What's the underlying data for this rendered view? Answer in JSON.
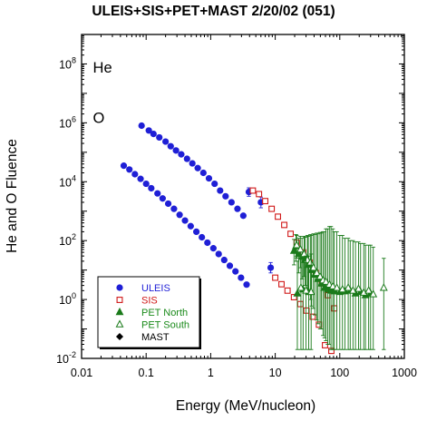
{
  "chart_data": {
    "type": "scatter",
    "title": "ULEIS+SIS+PET+MAST 2/20/02 (051)",
    "xlabel": "Energy (MeV/nucleon)",
    "ylabel": "He and O Fluence",
    "xscale": "log",
    "yscale": "log",
    "xlim": [
      0.01,
      1000
    ],
    "ylim": [
      0.01,
      1000000000
    ],
    "x_ticks": [
      {
        "value": 0.01,
        "label": "0.01"
      },
      {
        "value": 0.1,
        "label": "0.1"
      },
      {
        "value": 1,
        "label": "1"
      },
      {
        "value": 10,
        "label": "10"
      },
      {
        "value": 100,
        "label": "100"
      },
      {
        "value": 1000,
        "label": "1000"
      }
    ],
    "y_ticks": [
      {
        "value": 0.01,
        "base": "10",
        "exp": "-2"
      },
      {
        "value": 1,
        "base": "10",
        "exp": "0"
      },
      {
        "value": 100,
        "base": "10",
        "exp": "2"
      },
      {
        "value": 10000,
        "base": "10",
        "exp": "4"
      },
      {
        "value": 1000000,
        "base": "10",
        "exp": "6"
      },
      {
        "value": 100000000,
        "base": "10",
        "exp": "8"
      }
    ],
    "panel_labels": [
      {
        "text": "He",
        "x": 0.015,
        "y": 50000000
      },
      {
        "text": "O",
        "x": 0.015,
        "y": 1000000
      }
    ],
    "legend_position": "bottom-left",
    "series": [
      {
        "name": "ULEIS",
        "color": "#1f1fd6",
        "text_color": "#1f1fd6",
        "marker": "circle-filled",
        "points": [
          {
            "x": 0.085,
            "y": 800000
          },
          {
            "x": 0.11,
            "y": 550000
          },
          {
            "x": 0.13,
            "y": 420000
          },
          {
            "x": 0.16,
            "y": 320000
          },
          {
            "x": 0.2,
            "y": 230000
          },
          {
            "x": 0.24,
            "y": 160000
          },
          {
            "x": 0.29,
            "y": 115000
          },
          {
            "x": 0.35,
            "y": 85000
          },
          {
            "x": 0.43,
            "y": 60000
          },
          {
            "x": 0.52,
            "y": 42000
          },
          {
            "x": 0.63,
            "y": 29000
          },
          {
            "x": 0.77,
            "y": 20000
          },
          {
            "x": 0.94,
            "y": 13000
          },
          {
            "x": 1.15,
            "y": 8500
          },
          {
            "x": 1.4,
            "y": 5000
          },
          {
            "x": 1.7,
            "y": 3200
          },
          {
            "x": 2.1,
            "y": 2000
          },
          {
            "x": 2.6,
            "y": 1200
          },
          {
            "x": 3.2,
            "y": 700
          },
          {
            "x": 3.9,
            "y": 4500,
            "err": [
              3200,
              6200
            ]
          },
          {
            "x": 6.0,
            "y": 2000,
            "err": [
              1300,
              3000
            ]
          },
          {
            "x": 0.045,
            "y": 35000
          },
          {
            "x": 0.055,
            "y": 26000
          },
          {
            "x": 0.067,
            "y": 18000
          },
          {
            "x": 0.082,
            "y": 12500
          },
          {
            "x": 0.1,
            "y": 8500
          },
          {
            "x": 0.12,
            "y": 6000
          },
          {
            "x": 0.15,
            "y": 4000
          },
          {
            "x": 0.18,
            "y": 2700
          },
          {
            "x": 0.22,
            "y": 1800
          },
          {
            "x": 0.27,
            "y": 1200
          },
          {
            "x": 0.33,
            "y": 750
          },
          {
            "x": 0.4,
            "y": 480
          },
          {
            "x": 0.49,
            "y": 310
          },
          {
            "x": 0.6,
            "y": 200
          },
          {
            "x": 0.73,
            "y": 130
          },
          {
            "x": 0.89,
            "y": 85
          },
          {
            "x": 1.1,
            "y": 55
          },
          {
            "x": 1.33,
            "y": 35
          },
          {
            "x": 1.62,
            "y": 22
          },
          {
            "x": 1.98,
            "y": 14
          },
          {
            "x": 2.42,
            "y": 9
          },
          {
            "x": 2.95,
            "y": 5.5
          },
          {
            "x": 3.6,
            "y": 3.2
          },
          {
            "x": 8.5,
            "y": 12,
            "err": [
              8,
              18
            ]
          }
        ]
      },
      {
        "name": "SIS",
        "color": "#d01818",
        "text_color": "#d01818",
        "marker": "square-open",
        "points": [
          {
            "x": 4.5,
            "y": 5000
          },
          {
            "x": 5.6,
            "y": 3800
          },
          {
            "x": 7.0,
            "y": 2200
          },
          {
            "x": 8.8,
            "y": 1200
          },
          {
            "x": 11.0,
            "y": 650
          },
          {
            "x": 13.8,
            "y": 340
          },
          {
            "x": 17.3,
            "y": 170
          },
          {
            "x": 21.5,
            "y": 85
          },
          {
            "x": 27.0,
            "y": 40
          },
          {
            "x": 34.0,
            "y": 18
          },
          {
            "x": 42.5,
            "y": 8
          },
          {
            "x": 53.0,
            "y": 3.5
          },
          {
            "x": 66.0,
            "y": 1.4
          },
          {
            "x": 82.0,
            "y": 0.5
          },
          {
            "x": 10.0,
            "y": 5.5
          },
          {
            "x": 12.5,
            "y": 3.3
          },
          {
            "x": 15.5,
            "y": 2.0
          },
          {
            "x": 19.5,
            "y": 1.2
          },
          {
            "x": 24.5,
            "y": 0.7
          },
          {
            "x": 30.5,
            "y": 0.42
          },
          {
            "x": 38.0,
            "y": 0.26
          },
          {
            "x": 47.5,
            "y": 0.14
          },
          {
            "x": 59.0,
            "y": 0.028
          },
          {
            "x": 74.0,
            "y": 0.018
          }
        ]
      },
      {
        "name": "PET North",
        "color": "#1a7a1a",
        "text_color": "#1a8a1a",
        "marker": "triangle-filled",
        "points": [
          {
            "x": 19.5,
            "y": 45,
            "err": [
              15,
              110
            ]
          },
          {
            "x": 21.0,
            "y": 65,
            "err": [
              20,
              160
            ]
          },
          {
            "x": 23.0,
            "y": 35,
            "err": [
              8,
              120
            ]
          },
          {
            "x": 26.0,
            "y": 28,
            "err": [
              5,
              120
            ]
          },
          {
            "x": 29.0,
            "y": 22,
            "err": [
              3,
              130
            ]
          },
          {
            "x": 32.5,
            "y": 15,
            "err": [
              1.5,
              140
            ]
          },
          {
            "x": 36.5,
            "y": 10,
            "err": [
              0.6,
              150
            ]
          },
          {
            "x": 41.0,
            "y": 7,
            "err": [
              0.3,
              160
            ]
          },
          {
            "x": 46.0,
            "y": 5,
            "err": [
              0.15,
              170
            ]
          },
          {
            "x": 52.0,
            "y": 3.5,
            "err": [
              0.1,
              180
            ]
          },
          {
            "x": 58.0,
            "y": 2.5,
            "err": [
              0.05,
              200
            ]
          },
          {
            "x": 65.0,
            "y": 2.2,
            "err": [
              0.03,
              250
            ]
          },
          {
            "x": 73.0,
            "y": 2.0,
            "err": [
              0.02,
              300
            ]
          },
          {
            "x": 82.0,
            "y": 1.9,
            "err": [
              0.02,
              200
            ]
          },
          {
            "x": 100.0,
            "y": 1.8,
            "err": [
              0.02,
              150
            ]
          },
          {
            "x": 120.0,
            "y": 1.9,
            "err": [
              0.02,
              120
            ]
          },
          {
            "x": 145.0,
            "y": 2.0,
            "err": [
              0.02,
              100
            ]
          },
          {
            "x": 175.0,
            "y": 1.6,
            "err": [
              0.02,
              90
            ]
          },
          {
            "x": 210.0,
            "y": 1.8,
            "err": [
              0.02,
              80
            ]
          },
          {
            "x": 250.0,
            "y": 1.4,
            "err": [
              0.02,
              70
            ]
          },
          {
            "x": 300.0,
            "y": 1.6,
            "err": [
              0.02,
              70
            ]
          },
          {
            "x": 22.0,
            "y": 1.6,
            "err": [
              0.02,
              20
            ]
          },
          {
            "x": 27.0,
            "y": 2.2,
            "err": [
              0.02,
              25
            ]
          },
          {
            "x": 33.0,
            "y": 1.8,
            "err": [
              0.02,
              30
            ]
          }
        ]
      },
      {
        "name": "PET South",
        "color": "#1a7a1a",
        "text_color": "#1a8a1a",
        "marker": "triangle-open",
        "points": [
          {
            "x": 21.5,
            "y": 70,
            "err": [
              25,
              150
            ]
          },
          {
            "x": 24.5,
            "y": 50,
            "err": [
              12,
              140
            ]
          },
          {
            "x": 28.0,
            "y": 35,
            "err": [
              6,
              140
            ]
          },
          {
            "x": 31.5,
            "y": 22,
            "err": [
              2,
              150
            ]
          },
          {
            "x": 35.0,
            "y": 18,
            "err": [
              1,
              160
            ]
          },
          {
            "x": 39.0,
            "y": 12,
            "err": [
              0.5,
              170
            ]
          },
          {
            "x": 44.0,
            "y": 8,
            "err": [
              0.2,
              180
            ]
          },
          {
            "x": 49.5,
            "y": 6,
            "err": [
              0.1,
              190
            ]
          },
          {
            "x": 55.0,
            "y": 4.5,
            "err": [
              0.06,
              200
            ]
          },
          {
            "x": 61.0,
            "y": 4.0,
            "err": [
              0.04,
              250
            ]
          },
          {
            "x": 69.0,
            "y": 3.2,
            "err": [
              0.03,
              300
            ]
          },
          {
            "x": 78.0,
            "y": 2.8,
            "err": [
              0.02,
              250
            ]
          },
          {
            "x": 90.0,
            "y": 2.5,
            "err": [
              0.02,
              200
            ]
          },
          {
            "x": 110.0,
            "y": 2.2,
            "err": [
              0.02,
              150
            ]
          },
          {
            "x": 135.0,
            "y": 2.5,
            "err": [
              0.02,
              120
            ]
          },
          {
            "x": 160.0,
            "y": 2.0,
            "err": [
              0.02,
              100
            ]
          },
          {
            "x": 195.0,
            "y": 2.3,
            "err": [
              0.02,
              90
            ]
          },
          {
            "x": 235.0,
            "y": 1.7,
            "err": [
              0.02,
              80
            ]
          },
          {
            "x": 280.0,
            "y": 2.0,
            "err": [
              0.02,
              70
            ]
          },
          {
            "x": 330.0,
            "y": 1.5,
            "err": [
              0.02,
              60
            ]
          },
          {
            "x": 480.0,
            "y": 2.5,
            "err": [
              0.02,
              25
            ]
          },
          {
            "x": 25.0,
            "y": 2.5,
            "err": [
              0.02,
              25
            ]
          },
          {
            "x": 30.0,
            "y": 2.0,
            "err": [
              0.02,
              30
            ]
          },
          {
            "x": 36.0,
            "y": 1.8,
            "err": [
              0.02,
              35
            ]
          }
        ]
      },
      {
        "name": "MAST",
        "color": "#000000",
        "text_color": "#000000",
        "marker": "diamond-filled",
        "points": []
      }
    ]
  }
}
